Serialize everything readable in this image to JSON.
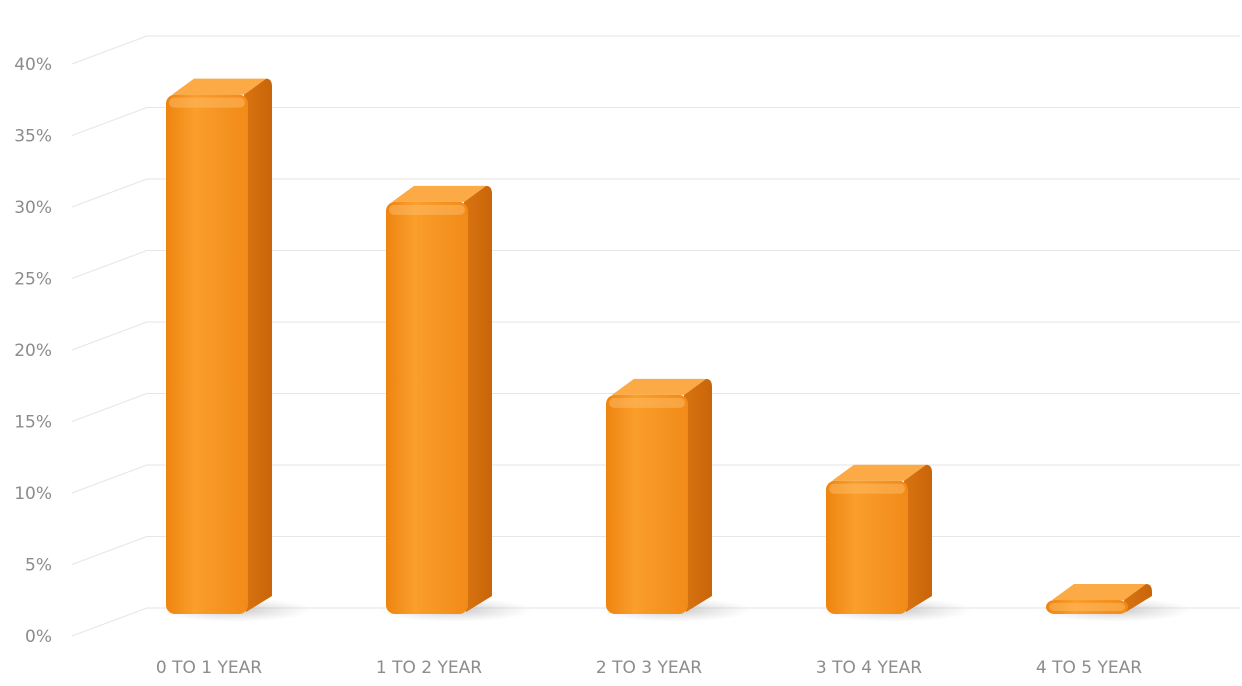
{
  "chart_data": {
    "type": "bar",
    "title": "",
    "xlabel": "",
    "ylabel": "",
    "categories": [
      "0 TO 1 YEAR",
      "1 TO 2 YEAR",
      "2 TO 3 YEAR",
      "3 TO 4 YEAR",
      "4 TO 5 YEAR"
    ],
    "values": [
      38,
      30.5,
      17,
      11,
      1
    ],
    "ylim": [
      0,
      40
    ],
    "yticks": [
      0,
      5,
      10,
      15,
      20,
      25,
      30,
      35,
      40
    ],
    "ytick_labels": [
      "0%",
      "5%",
      "10%",
      "15%",
      "20%",
      "25%",
      "30%",
      "35%",
      "40%"
    ],
    "grid": true,
    "legend": "none",
    "style": "3d",
    "colors": {
      "bar_front": "#f7941d",
      "bar_side": "#d9730f",
      "bar_top": "#fbaa45",
      "grid": "#e6e6e6",
      "tick_text": "#8c8c8c"
    }
  }
}
